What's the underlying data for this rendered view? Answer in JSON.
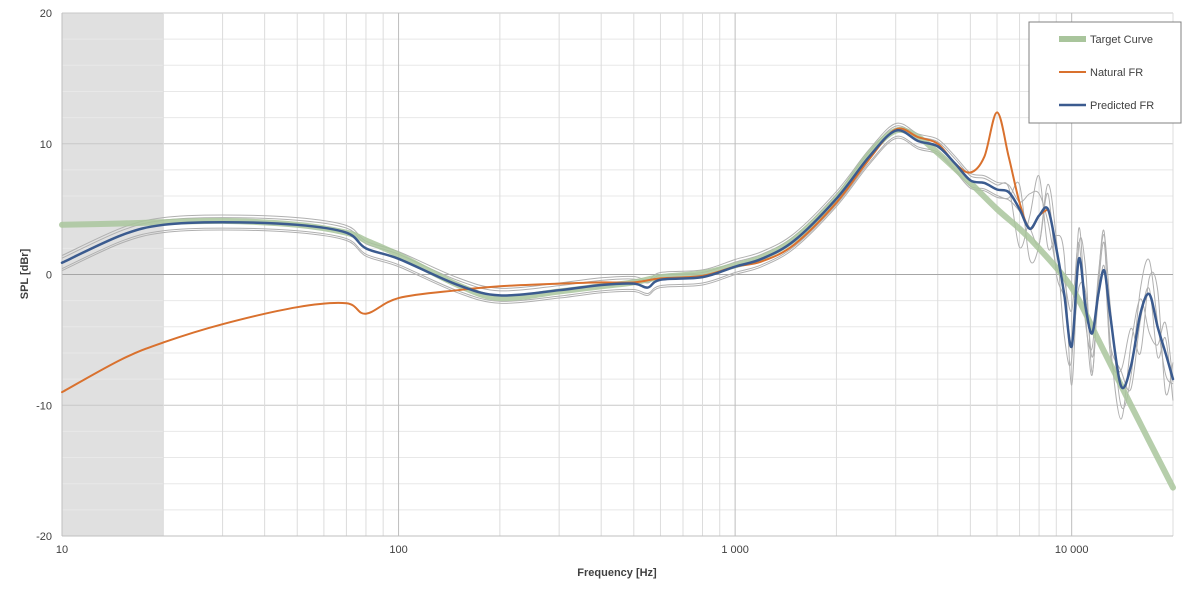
{
  "chart_data": {
    "type": "line",
    "title": "",
    "xlabel": "Frequency [Hz]",
    "ylabel": "SPL [dBr]",
    "x_scale": "log",
    "xlim": [
      10,
      20000
    ],
    "ylim": [
      -20,
      20
    ],
    "x_ticks": [
      {
        "value": 10,
        "label": "10"
      },
      {
        "value": 100,
        "label": "100"
      },
      {
        "value": 1000,
        "label": "1 000"
      },
      {
        "value": 10000,
        "label": "10 000"
      }
    ],
    "y_ticks": [
      {
        "value": 20,
        "label": "20"
      },
      {
        "value": 10,
        "label": "10"
      },
      {
        "value": 0,
        "label": "0"
      },
      {
        "value": -10,
        "label": "-10"
      },
      {
        "value": -20,
        "label": "-20"
      }
    ],
    "grid": true,
    "legend_position": "top-right",
    "shaded_region": {
      "x_start": 10,
      "x_end": 20,
      "color": "#e0e0e0"
    },
    "colors": {
      "target": "#a9c59c",
      "natural": "#d9712e",
      "predicted": "#3b5b8f",
      "individual": "#b0b0b0"
    },
    "series": [
      {
        "name": "Target Curve",
        "x": [
          10,
          15,
          20,
          30,
          50,
          70,
          80,
          100,
          150,
          200,
          300,
          400,
          500,
          600,
          800,
          1000,
          1200,
          1500,
          2000,
          2500,
          3000,
          3500,
          4000,
          5000,
          6000,
          7000,
          8000,
          10000,
          12000,
          15000,
          20000
        ],
        "y": [
          3.8,
          3.9,
          4.0,
          4.1,
          3.8,
          3.2,
          2.6,
          1.5,
          -0.8,
          -1.8,
          -1.3,
          -0.9,
          -0.6,
          -0.2,
          0.1,
          0.7,
          1.3,
          2.7,
          5.8,
          9.2,
          11.0,
          10.5,
          9.3,
          7.0,
          5.0,
          3.5,
          2.0,
          -1.0,
          -5.0,
          -10.0,
          -16.3
        ]
      },
      {
        "name": "Natural FR",
        "x": [
          10,
          15,
          20,
          30,
          50,
          70,
          80,
          100,
          150,
          200,
          300,
          400,
          500,
          600,
          800,
          1000,
          1200,
          1500,
          2000,
          2500,
          3000,
          3500,
          4000,
          4500,
          5000,
          5500,
          6000,
          6500,
          7000,
          7500,
          8000,
          8500
        ],
        "y": [
          -9.0,
          -6.5,
          -5.2,
          -3.8,
          -2.5,
          -2.2,
          -3.0,
          -1.8,
          -1.2,
          -0.9,
          -0.7,
          -0.6,
          -0.6,
          -0.3,
          -0.1,
          0.6,
          1.0,
          2.3,
          5.5,
          8.8,
          11.1,
          10.5,
          10.0,
          8.5,
          7.8,
          9.0,
          12.4,
          9.0,
          5.5,
          3.5,
          4.5,
          5.0
        ]
      },
      {
        "name": "Predicted FR",
        "x": [
          10,
          15,
          20,
          30,
          50,
          70,
          80,
          100,
          150,
          200,
          300,
          400,
          500,
          550,
          600,
          800,
          1000,
          1200,
          1500,
          2000,
          2500,
          3000,
          3500,
          4000,
          4500,
          5000,
          5500,
          6000,
          6500,
          7000,
          7500,
          8000,
          8500,
          9000,
          9500,
          10000,
          10500,
          11000,
          11500,
          12000,
          12500,
          13000,
          14000,
          15000,
          16000,
          17000,
          18000,
          19000,
          20000
        ],
        "y": [
          0.9,
          3.0,
          3.8,
          4.0,
          3.8,
          3.2,
          2.0,
          1.2,
          -0.8,
          -1.6,
          -1.2,
          -0.8,
          -0.7,
          -1.0,
          -0.4,
          -0.2,
          0.6,
          1.2,
          2.6,
          5.8,
          9.0,
          11.0,
          10.2,
          9.8,
          8.5,
          7.2,
          7.0,
          6.5,
          6.3,
          5.0,
          3.5,
          4.5,
          5.0,
          2.0,
          -1.5,
          -5.5,
          1.2,
          -2.5,
          -4.5,
          -1.5,
          0.3,
          -3.0,
          -8.5,
          -7.0,
          -3.0,
          -1.5,
          -4.0,
          -6.0,
          -8.0
        ]
      }
    ],
    "individual_measurement_count": 4
  }
}
